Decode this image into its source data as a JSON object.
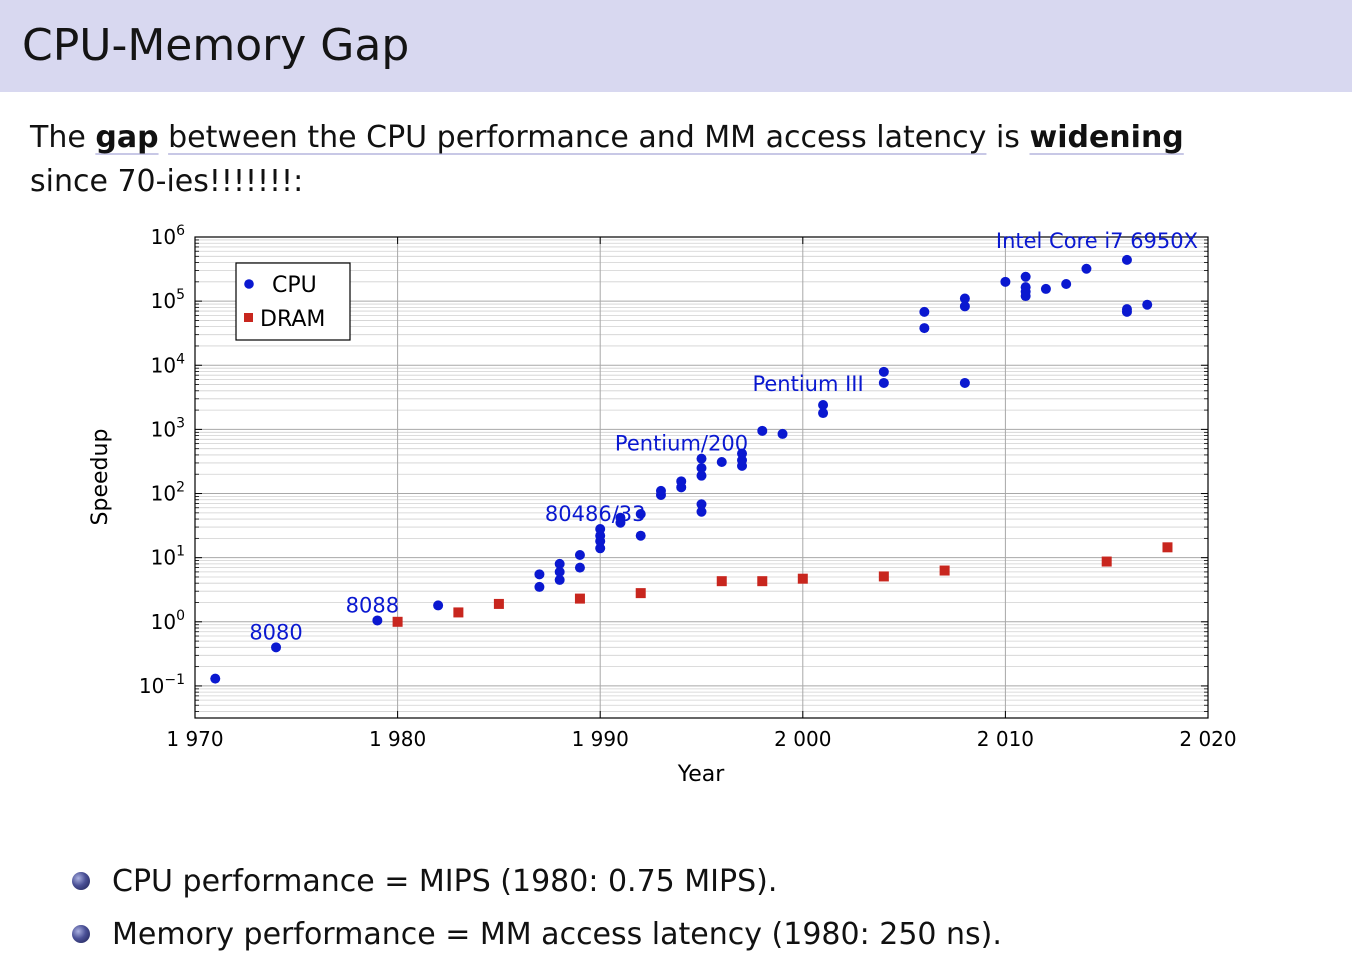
{
  "slide": {
    "title": "CPU-Memory Gap",
    "intro": {
      "t1": "The ",
      "gap": "gap",
      "t2": "between the CPU performance and MM access latency",
      "t3": " is ",
      "widening": "widening",
      "t4": "since 70-ies!!!!!!!:"
    },
    "bullets": [
      "CPU performance = MIPS (1980: 0.75 MIPS).",
      "Memory performance = MM access latency (1980: 250 ns)."
    ]
  },
  "chart_data": {
    "type": "scatter",
    "xlabel": "Year",
    "ylabel": "Speedup",
    "xlim": [
      1970,
      2020
    ],
    "ylim_log10": [
      -1.5,
      6
    ],
    "yscale": "log",
    "x_ticks": [
      1970,
      1980,
      1990,
      2000,
      2010,
      2020
    ],
    "x_tick_labels": [
      "1 970",
      "1 980",
      "1 990",
      "2 000",
      "2 010",
      "2 020"
    ],
    "y_tick_exponents": [
      -1,
      0,
      1,
      2,
      3,
      4,
      5,
      6
    ],
    "grid": true,
    "legend_position": "top-left",
    "series": [
      {
        "name": "CPU",
        "color": "#0a18d0",
        "marker": "circle",
        "points": [
          [
            1971,
            0.13
          ],
          [
            1974,
            0.4
          ],
          [
            1979,
            1.05
          ],
          [
            1982,
            1.8
          ],
          [
            1987,
            3.5
          ],
          [
            1987,
            5.5
          ],
          [
            1988,
            4.5
          ],
          [
            1988,
            6.0
          ],
          [
            1988,
            8.0
          ],
          [
            1989,
            7.0
          ],
          [
            1989,
            11
          ],
          [
            1990,
            14
          ],
          [
            1990,
            18
          ],
          [
            1990,
            22
          ],
          [
            1990,
            28
          ],
          [
            1991,
            35
          ],
          [
            1991,
            42
          ],
          [
            1992,
            22
          ],
          [
            1992,
            48
          ],
          [
            1993,
            95
          ],
          [
            1993,
            110
          ],
          [
            1994,
            125
          ],
          [
            1994,
            155
          ],
          [
            1995,
            52
          ],
          [
            1995,
            68
          ],
          [
            1995,
            190
          ],
          [
            1995,
            250
          ],
          [
            1995,
            350
          ],
          [
            1996,
            310
          ],
          [
            1997,
            270
          ],
          [
            1997,
            330
          ],
          [
            1997,
            420
          ],
          [
            1998,
            950
          ],
          [
            1999,
            850
          ],
          [
            2001,
            1800
          ],
          [
            2001,
            2400
          ],
          [
            2004,
            5300
          ],
          [
            2004,
            7900
          ],
          [
            2006,
            38000
          ],
          [
            2006,
            68000
          ],
          [
            2008,
            5300
          ],
          [
            2008,
            83000
          ],
          [
            2008,
            110000
          ],
          [
            2010,
            200000
          ],
          [
            2011,
            120000
          ],
          [
            2011,
            140000
          ],
          [
            2011,
            165000
          ],
          [
            2011,
            240000
          ],
          [
            2012,
            155000
          ],
          [
            2013,
            185000
          ],
          [
            2014,
            320000
          ],
          [
            2016,
            68000
          ],
          [
            2016,
            75000
          ],
          [
            2016,
            440000
          ],
          [
            2017,
            88000
          ]
        ]
      },
      {
        "name": "DRAM",
        "color": "#c8261e",
        "marker": "square",
        "points": [
          [
            1980,
            1.0
          ],
          [
            1983,
            1.4
          ],
          [
            1985,
            1.9
          ],
          [
            1989,
            2.3
          ],
          [
            1992,
            2.8
          ],
          [
            1996,
            4.3
          ],
          [
            1998,
            4.3
          ],
          [
            2000,
            4.7
          ],
          [
            2004,
            5.1
          ],
          [
            2007,
            6.3
          ],
          [
            2015,
            8.7
          ],
          [
            2018,
            14.5
          ]
        ]
      }
    ],
    "annotations": [
      {
        "text": "8080",
        "x": 1974,
        "y": 0.4
      },
      {
        "text": "8088",
        "x": 1979,
        "y": 1.05
      },
      {
        "text": "80486/33",
        "x": 1990,
        "y": 28
      },
      {
        "text": "Pentium/200",
        "x": 1995,
        "y": 350
      },
      {
        "text": "Pentium III",
        "x": 2001,
        "y": 2400
      },
      {
        "text": "Intel Core i7 6950X",
        "x": 2016,
        "y": 440000
      }
    ]
  }
}
